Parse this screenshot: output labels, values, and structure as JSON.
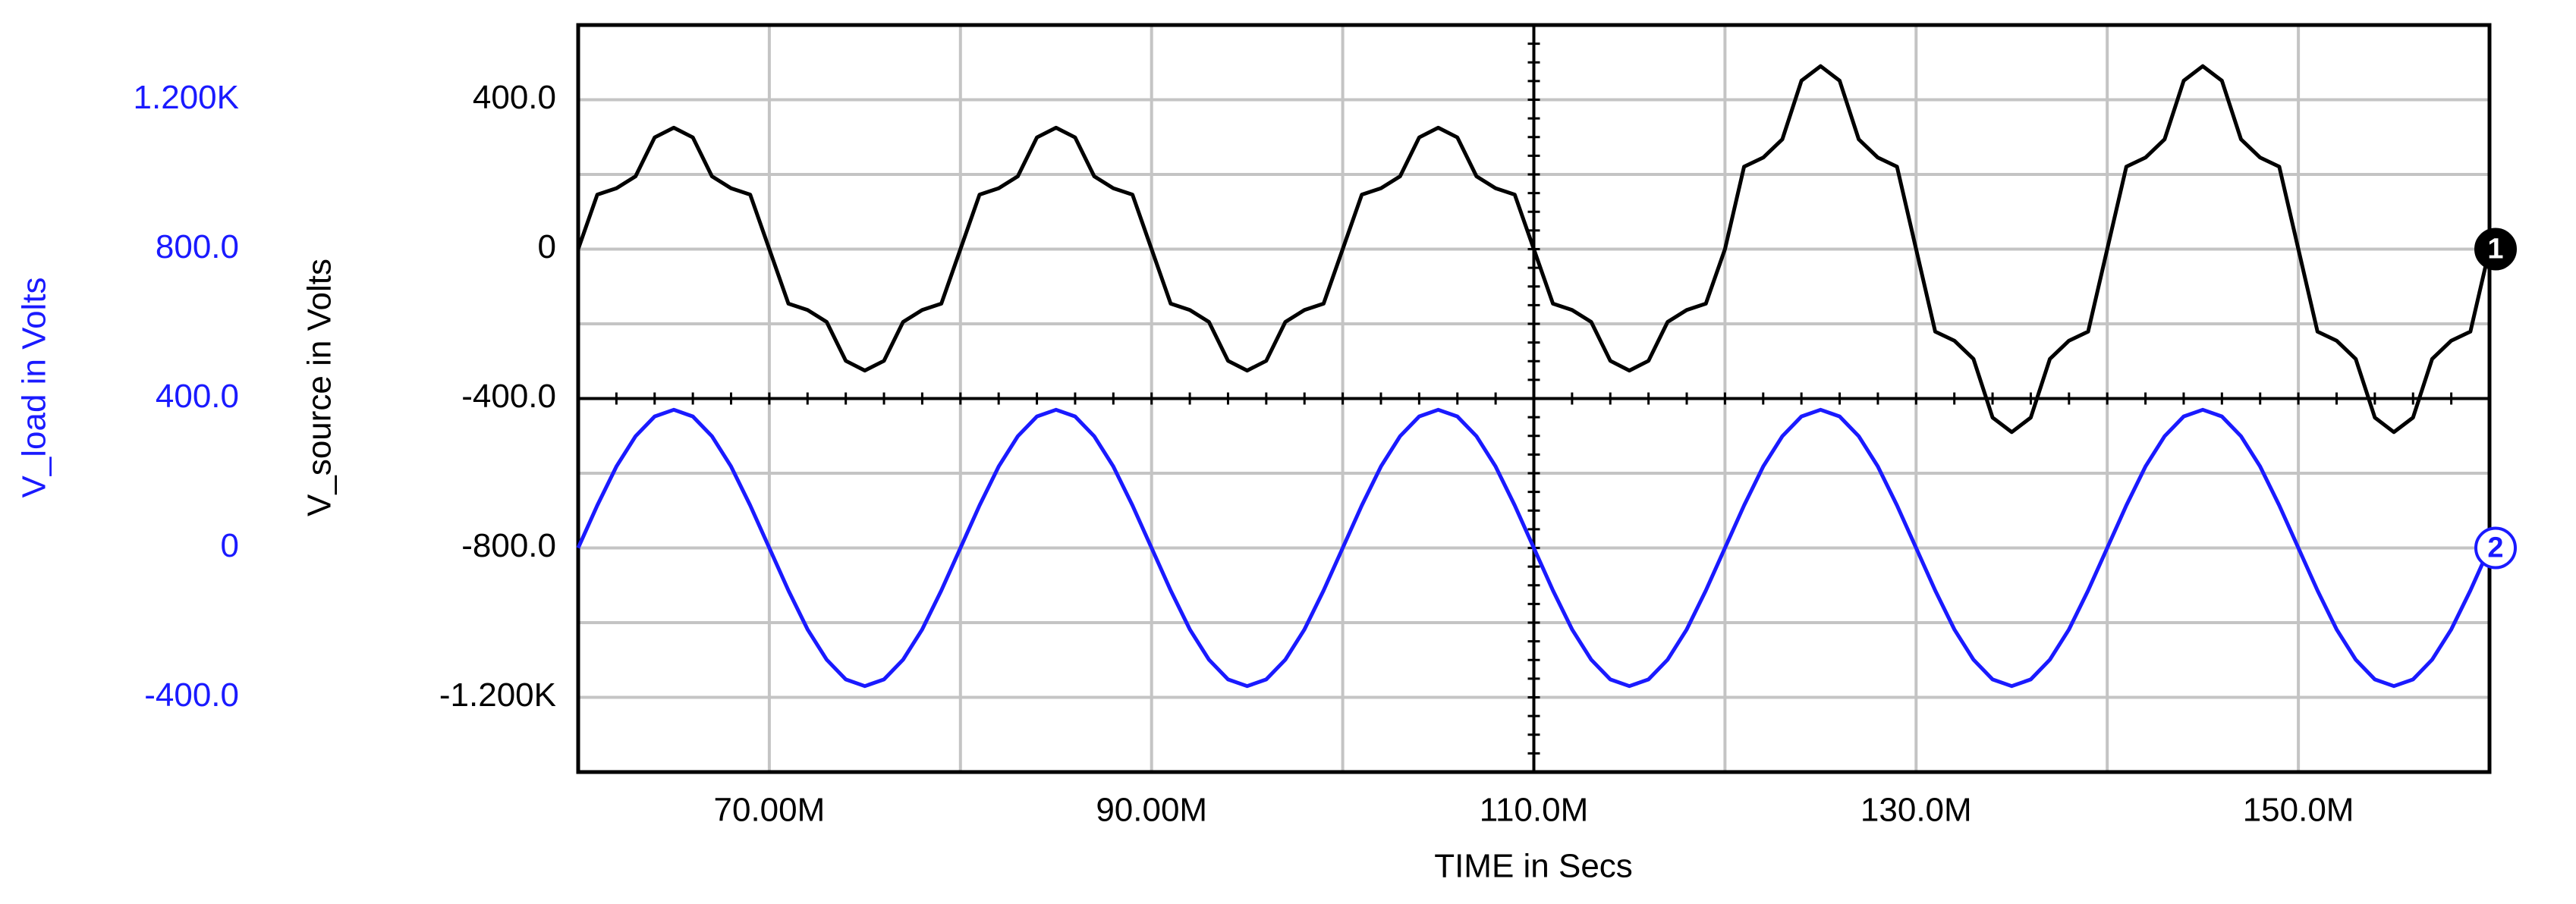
{
  "chart_data": {
    "type": "line",
    "x_label": "TIME in Secs",
    "y_label": "V_source in Volts",
    "y2_label": "V_load in Volts",
    "xlim": [
      0.06,
      0.16
    ],
    "xticks": [
      {
        "value": 0.07,
        "label": "70.00M"
      },
      {
        "value": 0.09,
        "label": "90.00M"
      },
      {
        "value": 0.11,
        "label": "110.0M"
      },
      {
        "value": 0.13,
        "label": "130.0M"
      },
      {
        "value": 0.15,
        "label": "150.0M"
      }
    ],
    "x_minor_ticks": [
      0.08,
      0.1,
      0.12,
      0.14
    ],
    "ylim": [
      -1400,
      600
    ],
    "yticks": [
      {
        "value": 400,
        "label": "400.0"
      },
      0,
      {
        "value": -400,
        "label": "-400.0"
      },
      {
        "value": -800,
        "label": "-800.0"
      },
      {
        "value": -1200,
        "label": "-1.200K"
      }
    ],
    "y_minor_ticks": [
      200,
      -200,
      -600,
      -1000
    ],
    "y2lim": [
      -600,
      1400
    ],
    "y2ticks": [
      {
        "value": 1200,
        "label": "1.200K"
      },
      {
        "value": 800,
        "label": "800.0"
      },
      {
        "value": 400,
        "label": "400.0"
      },
      0,
      {
        "value": -400,
        "label": "-400.0"
      }
    ],
    "y2_color": "#1a1aff",
    "grid": true,
    "x": [
      0.06,
      0.061,
      0.062,
      0.063,
      0.064,
      0.065,
      0.066,
      0.067,
      0.068,
      0.069,
      0.07,
      0.071,
      0.072,
      0.073,
      0.074,
      0.075,
      0.076,
      0.077,
      0.078,
      0.079,
      0.08,
      0.081,
      0.082,
      0.083,
      0.084,
      0.085,
      0.086,
      0.087,
      0.088,
      0.089,
      0.09,
      0.091,
      0.092,
      0.093,
      0.094,
      0.095,
      0.096,
      0.097,
      0.098,
      0.099,
      0.1,
      0.101,
      0.102,
      0.103,
      0.104,
      0.105,
      0.106,
      0.107,
      0.108,
      0.109,
      0.11,
      0.111,
      0.112,
      0.113,
      0.114,
      0.115,
      0.116,
      0.117,
      0.118,
      0.119,
      0.12,
      0.121,
      0.122,
      0.123,
      0.124,
      0.125,
      0.126,
      0.127,
      0.128,
      0.129,
      0.13,
      0.131,
      0.132,
      0.133,
      0.134,
      0.135,
      0.136,
      0.137,
      0.138,
      0.139,
      0.14,
      0.141,
      0.142,
      0.143,
      0.144,
      0.145,
      0.146,
      0.147,
      0.148,
      0.149,
      0.15,
      0.151,
      0.152,
      0.153,
      0.154,
      0.155,
      0.156,
      0.157,
      0.158,
      0.159,
      0.16
    ],
    "series": [
      {
        "name": "V_source",
        "label": "1",
        "color": "#000000",
        "values": [
          0,
          146,
          163,
          195,
          299,
          325,
          299,
          195,
          163,
          146,
          0,
          -146,
          -163,
          -195,
          -299,
          -325,
          -299,
          -195,
          -163,
          -146,
          0,
          146,
          163,
          195,
          299,
          325,
          299,
          195,
          163,
          146,
          0,
          -146,
          -163,
          -195,
          -299,
          -325,
          -299,
          -195,
          -163,
          -146,
          0,
          146,
          163,
          195,
          299,
          325,
          299,
          195,
          163,
          146,
          0,
          -146,
          -163,
          -195,
          -299,
          -325,
          -299,
          -195,
          -163,
          -146,
          0,
          221,
          245,
          294,
          451,
          490,
          451,
          294,
          245,
          221,
          0,
          -221,
          -245,
          -294,
          -451,
          -490,
          -451,
          -294,
          -245,
          -221,
          0,
          221,
          245,
          294,
          451,
          490,
          451,
          294,
          245,
          221,
          0,
          -221,
          -245,
          -294,
          -451,
          -490,
          -451,
          -294,
          -245,
          -221,
          0
        ]
      },
      {
        "name": "V_load",
        "label": "2",
        "color": "#1a1aff",
        "axis": "y2",
        "values": [
          0,
          114,
          218,
          299,
          352,
          370,
          352,
          299,
          218,
          114,
          0,
          -114,
          -218,
          -299,
          -352,
          -370,
          -352,
          -299,
          -218,
          -114,
          0,
          114,
          218,
          299,
          352,
          370,
          352,
          299,
          218,
          114,
          0,
          -114,
          -218,
          -299,
          -352,
          -370,
          -352,
          -299,
          -218,
          -114,
          0,
          114,
          218,
          299,
          352,
          370,
          352,
          299,
          218,
          114,
          0,
          -114,
          -218,
          -299,
          -352,
          -370,
          -352,
          -299,
          -218,
          -114,
          0,
          114,
          218,
          299,
          352,
          370,
          352,
          299,
          218,
          114,
          0,
          -114,
          -218,
          -299,
          -352,
          -370,
          -352,
          -299,
          -218,
          -114,
          0,
          114,
          218,
          299,
          352,
          370,
          352,
          299,
          218,
          114,
          0,
          -114,
          -218,
          -299,
          -352,
          -370,
          -352,
          -299,
          -218,
          -114,
          0
        ]
      }
    ]
  }
}
